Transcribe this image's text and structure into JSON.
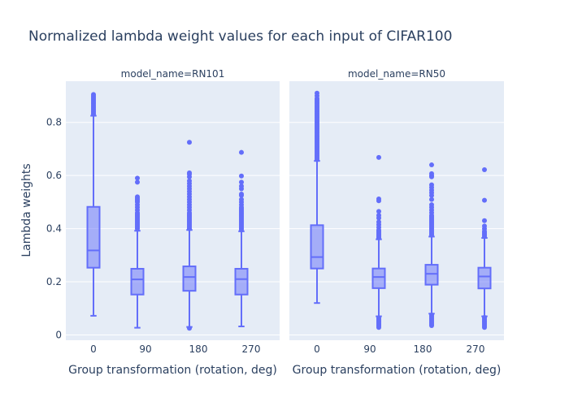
{
  "chart_data": {
    "type": "box",
    "title": "Normalized lambda weight values for each input of CIFAR100",
    "ylabel": "Lambda weights",
    "xlabel": "Group transformation (rotation, deg)",
    "categories": [
      "0",
      "90",
      "180",
      "270"
    ],
    "ylim": [
      -0.02,
      0.955
    ],
    "yticks": [
      0,
      0.2,
      0.4,
      0.6,
      0.8
    ],
    "grid": true,
    "colors": {
      "box": "#636efa",
      "plot_bg": "#e5ecf6",
      "grid": "#ffffff",
      "text": "#2a3f5f"
    },
    "panels": [
      {
        "name": "model_name=RN101",
        "boxes": [
          {
            "category": "0",
            "q1": 0.253,
            "median": 0.318,
            "q3": 0.482,
            "lower": 0.072,
            "upper": 0.825,
            "outliers": [
              0.83,
              0.835,
              0.84,
              0.845,
              0.85,
              0.855,
              0.86,
              0.865,
              0.87,
              0.875,
              0.88,
              0.885,
              0.89,
              0.895,
              0.9,
              0.905
            ]
          },
          {
            "category": "90",
            "q1": 0.152,
            "median": 0.209,
            "q3": 0.249,
            "lower": 0.027,
            "upper": 0.392,
            "outliers": [
              0.4,
              0.405,
              0.41,
              0.415,
              0.42,
              0.425,
              0.43,
              0.435,
              0.44,
              0.445,
              0.45,
              0.455,
              0.46,
              0.47,
              0.48,
              0.49,
              0.5,
              0.505,
              0.51,
              0.515,
              0.52,
              0.575,
              0.59
            ]
          },
          {
            "category": "180",
            "q1": 0.166,
            "median": 0.218,
            "q3": 0.258,
            "lower": 0.03,
            "upper": 0.395,
            "outliers": [
              0.025,
              0.4,
              0.405,
              0.41,
              0.415,
              0.42,
              0.425,
              0.43,
              0.435,
              0.44,
              0.445,
              0.45,
              0.455,
              0.46,
              0.47,
              0.48,
              0.49,
              0.5,
              0.51,
              0.52,
              0.53,
              0.54,
              0.55,
              0.56,
              0.57,
              0.58,
              0.595,
              0.605,
              0.61,
              0.725
            ]
          },
          {
            "category": "270",
            "q1": 0.152,
            "median": 0.21,
            "q3": 0.249,
            "lower": 0.032,
            "upper": 0.39,
            "outliers": [
              0.395,
              0.4,
              0.405,
              0.41,
              0.415,
              0.42,
              0.425,
              0.43,
              0.435,
              0.44,
              0.445,
              0.45,
              0.455,
              0.46,
              0.465,
              0.47,
              0.475,
              0.48,
              0.49,
              0.5,
              0.51,
              0.525,
              0.53,
              0.55,
              0.56,
              0.575,
              0.598,
              0.687
            ]
          }
        ]
      },
      {
        "name": "model_name=RN50",
        "boxes": [
          {
            "category": "0",
            "q1": 0.25,
            "median": 0.293,
            "q3": 0.413,
            "lower": 0.12,
            "upper": 0.655,
            "outliers": [
              0.66,
              0.665,
              0.67,
              0.675,
              0.68,
              0.685,
              0.69,
              0.695,
              0.7,
              0.705,
              0.71,
              0.715,
              0.72,
              0.725,
              0.73,
              0.735,
              0.74,
              0.745,
              0.75,
              0.755,
              0.76,
              0.765,
              0.77,
              0.775,
              0.78,
              0.785,
              0.79,
              0.795,
              0.8,
              0.805,
              0.81,
              0.815,
              0.82,
              0.825,
              0.83,
              0.835,
              0.84,
              0.845,
              0.85,
              0.855,
              0.86,
              0.865,
              0.87,
              0.875,
              0.88,
              0.885,
              0.89,
              0.9,
              0.91
            ]
          },
          {
            "category": "90",
            "q1": 0.176,
            "median": 0.218,
            "q3": 0.25,
            "lower": 0.07,
            "upper": 0.36,
            "outliers": [
              0.028,
              0.032,
              0.036,
              0.04,
              0.044,
              0.048,
              0.052,
              0.056,
              0.06,
              0.064,
              0.365,
              0.37,
              0.375,
              0.38,
              0.385,
              0.39,
              0.395,
              0.405,
              0.415,
              0.425,
              0.44,
              0.45,
              0.465,
              0.505,
              0.512,
              0.668
            ]
          },
          {
            "category": "180",
            "q1": 0.189,
            "median": 0.23,
            "q3": 0.264,
            "lower": 0.08,
            "upper": 0.37,
            "outliers": [
              0.035,
              0.04,
              0.045,
              0.05,
              0.055,
              0.06,
              0.065,
              0.07,
              0.075,
              0.375,
              0.38,
              0.385,
              0.39,
              0.395,
              0.4,
              0.405,
              0.41,
              0.415,
              0.42,
              0.425,
              0.43,
              0.435,
              0.44,
              0.445,
              0.45,
              0.46,
              0.47,
              0.48,
              0.49,
              0.51,
              0.525,
              0.535,
              0.545,
              0.555,
              0.565,
              0.595,
              0.6,
              0.607,
              0.64
            ]
          },
          {
            "category": "270",
            "q1": 0.175,
            "median": 0.22,
            "q3": 0.253,
            "lower": 0.07,
            "upper": 0.365,
            "outliers": [
              0.028,
              0.033,
              0.038,
              0.043,
              0.048,
              0.053,
              0.058,
              0.063,
              0.066,
              0.37,
              0.375,
              0.38,
              0.385,
              0.39,
              0.4,
              0.41,
              0.43,
              0.507,
              0.622
            ]
          }
        ]
      }
    ]
  }
}
